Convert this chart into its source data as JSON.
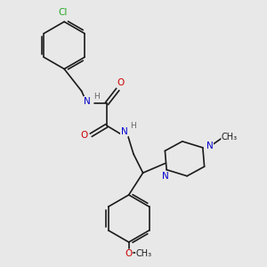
{
  "bg_color": "#e8e8e8",
  "bond_color": "#1a1a1a",
  "bond_width": 1.2,
  "atom_colors": {
    "N": "#0000cc",
    "O": "#cc0000",
    "Cl": "#22aa22",
    "H": "#666666"
  },
  "font_size": 7.5,
  "aromatic_inner_scale": 0.65
}
